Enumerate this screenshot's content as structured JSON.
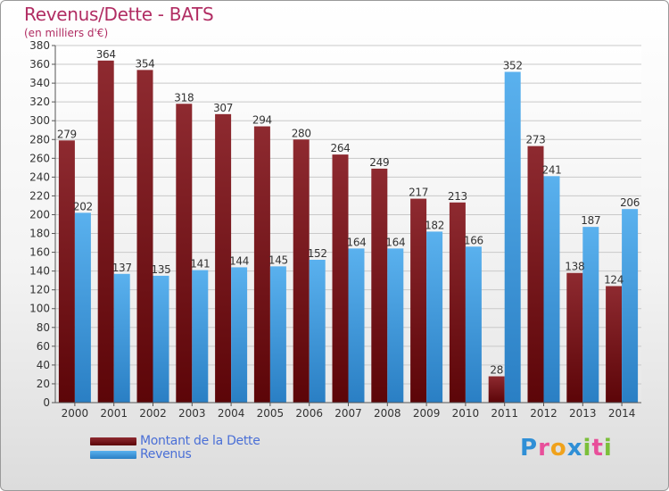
{
  "header": {
    "title": "Revenus/Dette - BATS",
    "subtitle": "(en milliers d'€)"
  },
  "colors": {
    "dette": "#7a1418",
    "revenus": "#3d9ee0",
    "title": "#b12d63",
    "legend_text": "#4a6fd6"
  },
  "legend": {
    "items": [
      {
        "label": "Montant de la Dette",
        "color": "#7a1418"
      },
      {
        "label": "Revenus",
        "color": "#3d9ee0"
      }
    ],
    "placement": "bottom-left"
  },
  "logo": {
    "text": "Proxiti",
    "letter_colors": [
      "#2f8fd6",
      "#e84f9a",
      "#f0a21c",
      "#2f8fd6",
      "#7bbf3a",
      "#e84f9a",
      "#7bbf3a"
    ]
  },
  "chart_data": {
    "type": "bar",
    "categories": [
      "2000",
      "2001",
      "2002",
      "2003",
      "2004",
      "2005",
      "2006",
      "2007",
      "2008",
      "2009",
      "2010",
      "2011",
      "2012",
      "2013",
      "2014"
    ],
    "series": [
      {
        "name": "Montant de la Dette",
        "values": [
          279,
          364,
          354,
          318,
          307,
          294,
          280,
          264,
          249,
          217,
          213,
          28,
          273,
          138,
          124
        ]
      },
      {
        "name": "Revenus",
        "values": [
          202,
          137,
          135,
          141,
          144,
          145,
          152,
          164,
          164,
          182,
          166,
          352,
          241,
          187,
          206
        ]
      }
    ],
    "ylim": [
      0,
      380
    ],
    "ytick_step": 20,
    "grid": true,
    "data_labels": true
  }
}
